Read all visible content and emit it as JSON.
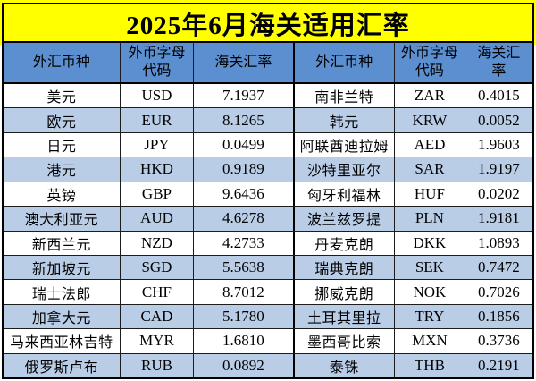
{
  "title": "2025年6月海关适用汇率",
  "colors": {
    "title_bg": "#FFFF00",
    "header_bg": "#5B8FD0",
    "row_bg": "#FFFFFF",
    "row_alt_bg": "#B9CDE7",
    "border": "#000000",
    "text": "#000000"
  },
  "table": {
    "headers": [
      "外汇币种",
      "外币字母代码",
      "海关汇率",
      "外汇币种",
      "外币字母代码",
      "海关汇率"
    ],
    "rows": [
      {
        "currency_l": "美元",
        "code_l": "USD",
        "rate_l": "7.1937",
        "currency_r": "南非兰特",
        "code_r": "ZAR",
        "rate_r": "0.4015"
      },
      {
        "currency_l": "欧元",
        "code_l": "EUR",
        "rate_l": "8.1265",
        "currency_r": "韩元",
        "code_r": "KRW",
        "rate_r": "0.0052"
      },
      {
        "currency_l": "日元",
        "code_l": "JPY",
        "rate_l": "0.0499",
        "currency_r": "阿联酋迪拉姆",
        "code_r": "AED",
        "rate_r": "1.9603"
      },
      {
        "currency_l": "港元",
        "code_l": "HKD",
        "rate_l": "0.9189",
        "currency_r": "沙特里亚尔",
        "code_r": "SAR",
        "rate_r": "1.9197"
      },
      {
        "currency_l": "英镑",
        "code_l": "GBP",
        "rate_l": "9.6436",
        "currency_r": "匈牙利福林",
        "code_r": "HUF",
        "rate_r": "0.0202"
      },
      {
        "currency_l": "澳大利亚元",
        "code_l": "AUD",
        "rate_l": "4.6278",
        "currency_r": "波兰兹罗提",
        "code_r": "PLN",
        "rate_r": "1.9181"
      },
      {
        "currency_l": "新西兰元",
        "code_l": "NZD",
        "rate_l": "4.2733",
        "currency_r": "丹麦克朗",
        "code_r": "DKK",
        "rate_r": "1.0893"
      },
      {
        "currency_l": "新加坡元",
        "code_l": "SGD",
        "rate_l": "5.5638",
        "currency_r": "瑞典克朗",
        "code_r": "SEK",
        "rate_r": "0.7472"
      },
      {
        "currency_l": "瑞士法郎",
        "code_l": "CHF",
        "rate_l": "8.7012",
        "currency_r": "挪威克朗",
        "code_r": "NOK",
        "rate_r": "0.7026"
      },
      {
        "currency_l": "加拿大元",
        "code_l": "CAD",
        "rate_l": "5.1780",
        "currency_r": "土耳其里拉",
        "code_r": "TRY",
        "rate_r": "0.1856"
      },
      {
        "currency_l": "马来西亚林吉特",
        "code_l": "MYR",
        "rate_l": "1.6810",
        "currency_r": "墨西哥比索",
        "code_r": "MXN",
        "rate_r": "0.3736"
      },
      {
        "currency_l": "俄罗斯卢布",
        "code_l": "RUB",
        "rate_l": "0.0892",
        "currency_r": "泰铢",
        "code_r": "THB",
        "rate_r": "0.2191"
      }
    ]
  }
}
